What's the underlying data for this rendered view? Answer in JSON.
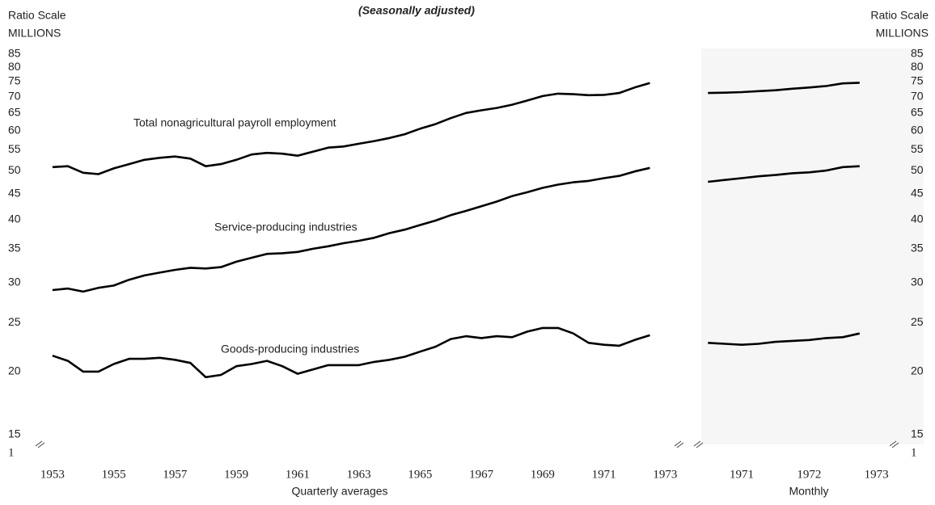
{
  "chart_data": [
    {
      "type": "line",
      "title": "(Seasonally adjusted)",
      "y_label": "Ratio Scale",
      "y_unit": "MILLIONS",
      "x_label": "Quarterly averages",
      "axis_break_label": "1",
      "log_scale": true,
      "grid": false,
      "x": [
        1953,
        1953.5,
        1954,
        1954.5,
        1955,
        1955.5,
        1956,
        1956.5,
        1957,
        1957.5,
        1958,
        1958.5,
        1959,
        1959.5,
        1960,
        1960.5,
        1961,
        1961.5,
        1962,
        1962.5,
        1963,
        1963.5,
        1964,
        1964.5,
        1965,
        1965.5,
        1966,
        1966.5,
        1967,
        1967.5,
        1968,
        1968.5,
        1969,
        1969.5,
        1970,
        1970.5,
        1971,
        1971.5,
        1972,
        1972.5
      ],
      "series": [
        {
          "name": "Total nonagricultural payroll employment",
          "color": "#000000",
          "values": [
            50.8,
            51,
            49.5,
            49.2,
            50.5,
            51.5,
            52.5,
            53,
            53.3,
            52.8,
            51,
            51.5,
            52.5,
            53.8,
            54.2,
            54,
            53.5,
            54.5,
            55.5,
            55.8,
            56.5,
            57.2,
            58,
            59,
            60.5,
            61.8,
            63.5,
            65,
            65.8,
            66.5,
            67.5,
            68.8,
            70.2,
            71,
            70.8,
            70.5,
            70.6,
            71.2,
            73,
            74.5
          ]
        },
        {
          "name": "Service-producing industries",
          "color": "#000000",
          "values": [
            29,
            29.2,
            28.8,
            29.3,
            29.6,
            30.4,
            31,
            31.4,
            31.8,
            32.1,
            32,
            32.2,
            33,
            33.6,
            34.2,
            34.3,
            34.5,
            35,
            35.4,
            35.9,
            36.3,
            36.8,
            37.6,
            38.2,
            39,
            39.8,
            40.8,
            41.6,
            42.5,
            43.4,
            44.5,
            45.3,
            46.2,
            46.9,
            47.4,
            47.7,
            48.3,
            48.8,
            49.8,
            50.6
          ]
        },
        {
          "name": "Goods-producing industries",
          "color": "#000000",
          "values": [
            21.5,
            21,
            20,
            20,
            20.7,
            21.2,
            21.2,
            21.3,
            21.1,
            20.8,
            19.5,
            19.7,
            20.5,
            20.7,
            21,
            20.5,
            19.8,
            20.2,
            20.6,
            20.6,
            20.6,
            20.9,
            21.1,
            21.4,
            21.9,
            22.4,
            23.2,
            23.5,
            23.3,
            23.5,
            23.4,
            24,
            24.4,
            24.4,
            23.8,
            22.8,
            22.6,
            22.5,
            23.1,
            23.6
          ]
        }
      ],
      "xlim": [
        1952.5,
        1973.2
      ],
      "xticks": [
        1953,
        1955,
        1957,
        1959,
        1961,
        1963,
        1965,
        1967,
        1969,
        1971,
        1973
      ],
      "ylim": [
        15,
        85
      ],
      "yticks": [
        15,
        20,
        25,
        30,
        35,
        40,
        45,
        50,
        55,
        60,
        65,
        70,
        75,
        80,
        85
      ]
    },
    {
      "type": "line",
      "y_label": "Ratio Scale",
      "y_unit": "MILLIONS",
      "x_label": "Monthly",
      "axis_break_label": "1",
      "log_scale": true,
      "grid": false,
      "x": [
        1970.5,
        1970.75,
        1971,
        1971.25,
        1971.5,
        1971.75,
        1972,
        1972.25,
        1972.5,
        1972.75
      ],
      "series": [
        {
          "color": "#000000",
          "values": [
            71.2,
            71.3,
            71.5,
            71.8,
            72.1,
            72.6,
            73,
            73.5,
            74.4,
            74.6
          ]
        },
        {
          "color": "#000000",
          "values": [
            47.5,
            47.9,
            48.3,
            48.7,
            49,
            49.4,
            49.6,
            50,
            50.8,
            51
          ]
        },
        {
          "color": "#000000",
          "values": [
            22.8,
            22.7,
            22.6,
            22.7,
            22.9,
            23,
            23.1,
            23.3,
            23.4,
            23.8
          ]
        }
      ],
      "xlim": [
        1970.4,
        1973.7
      ],
      "xticks": [
        1971,
        1972,
        1973
      ],
      "ylim": [
        15,
        85
      ],
      "yticks": [
        15,
        20,
        25,
        30,
        35,
        40,
        45,
        50,
        55,
        60,
        65,
        70,
        75,
        80,
        85
      ]
    }
  ]
}
